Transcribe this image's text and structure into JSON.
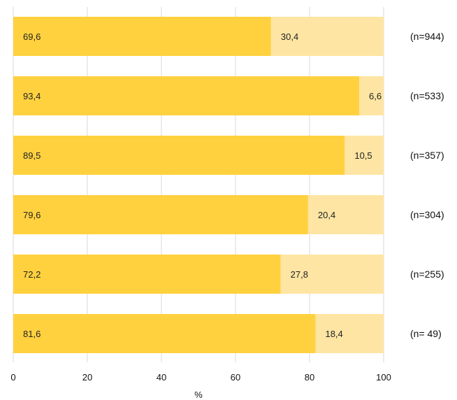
{
  "chart_data": {
    "type": "bar",
    "orientation": "horizontal",
    "stacked": true,
    "xlabel": "%",
    "xlim": [
      0,
      100
    ],
    "xticks": [
      0,
      20,
      40,
      60,
      80,
      100
    ],
    "grid": "vertical",
    "colors": {
      "primary": "#FFD13F",
      "secondary": "#FFE5A3",
      "grid": "#d9d9d9"
    },
    "rows": [
      {
        "n_label": "(n=944)",
        "values": [
          69.6,
          30.4
        ],
        "value_labels": [
          "69,6",
          "30,4"
        ]
      },
      {
        "n_label": "(n=533)",
        "values": [
          93.4,
          6.6
        ],
        "value_labels": [
          "93,4",
          "6,6"
        ]
      },
      {
        "n_label": "(n=357)",
        "values": [
          89.5,
          10.5
        ],
        "value_labels": [
          "89,5",
          "10,5"
        ]
      },
      {
        "n_label": "(n=304)",
        "values": [
          79.6,
          20.4
        ],
        "value_labels": [
          "79,6",
          "20,4"
        ]
      },
      {
        "n_label": "(n=255)",
        "values": [
          72.2,
          27.8
        ],
        "value_labels": [
          "72,2",
          "27,8"
        ]
      },
      {
        "n_label": "(n= 49)",
        "values": [
          81.6,
          18.4
        ],
        "value_labels": [
          "81,6",
          "18,4"
        ]
      }
    ]
  }
}
